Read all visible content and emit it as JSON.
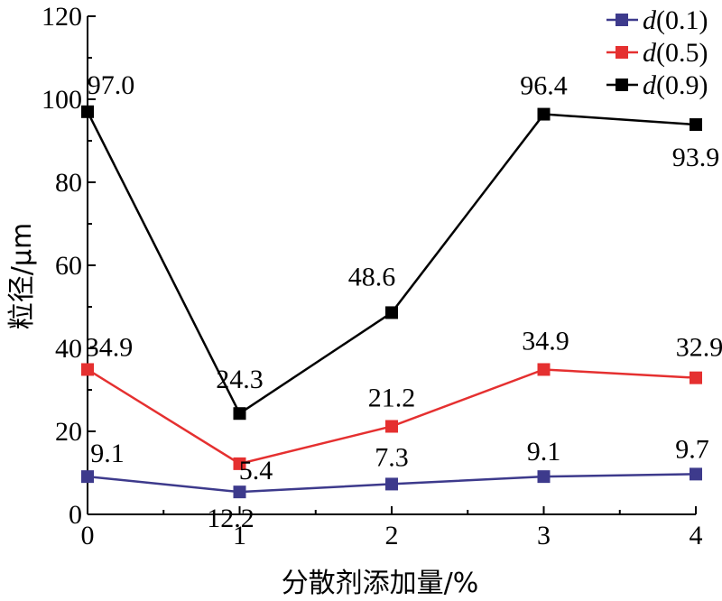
{
  "chart_data": {
    "type": "line",
    "x": [
      0,
      1,
      2,
      3,
      4
    ],
    "x_ticks": [
      "0",
      "1",
      "2",
      "3",
      "4"
    ],
    "xlabel": "分散剂添加量/%",
    "ylabel": "粒径/μm",
    "xlim": [
      0,
      4
    ],
    "ylim": [
      0,
      120
    ],
    "y_ticks": [
      "0",
      "20",
      "40",
      "60",
      "80",
      "100",
      "120"
    ],
    "grid": false,
    "legend_position": "top-right",
    "series": [
      {
        "name_prefix": "d",
        "name_suffix": "(0.1)",
        "color": "#3d3a8c",
        "values": [
          9.1,
          5.4,
          7.3,
          9.1,
          9.7
        ],
        "labels": [
          "9.1",
          "5.4",
          "7.3",
          "9.1",
          "9.7"
        ]
      },
      {
        "name_prefix": "d",
        "name_suffix": "(0.5)",
        "color": "#e53030",
        "values": [
          34.9,
          12.2,
          21.2,
          34.9,
          32.9
        ],
        "labels": [
          "34.9",
          "12.2",
          "21.2",
          "34.9",
          "32.9"
        ]
      },
      {
        "name_prefix": "d",
        "name_suffix": "(0.9)",
        "color": "#000000",
        "values": [
          97.0,
          24.3,
          48.6,
          96.4,
          93.9
        ],
        "labels": [
          "97.0",
          "24.3",
          "48.6",
          "96.4",
          "93.9"
        ]
      }
    ]
  }
}
